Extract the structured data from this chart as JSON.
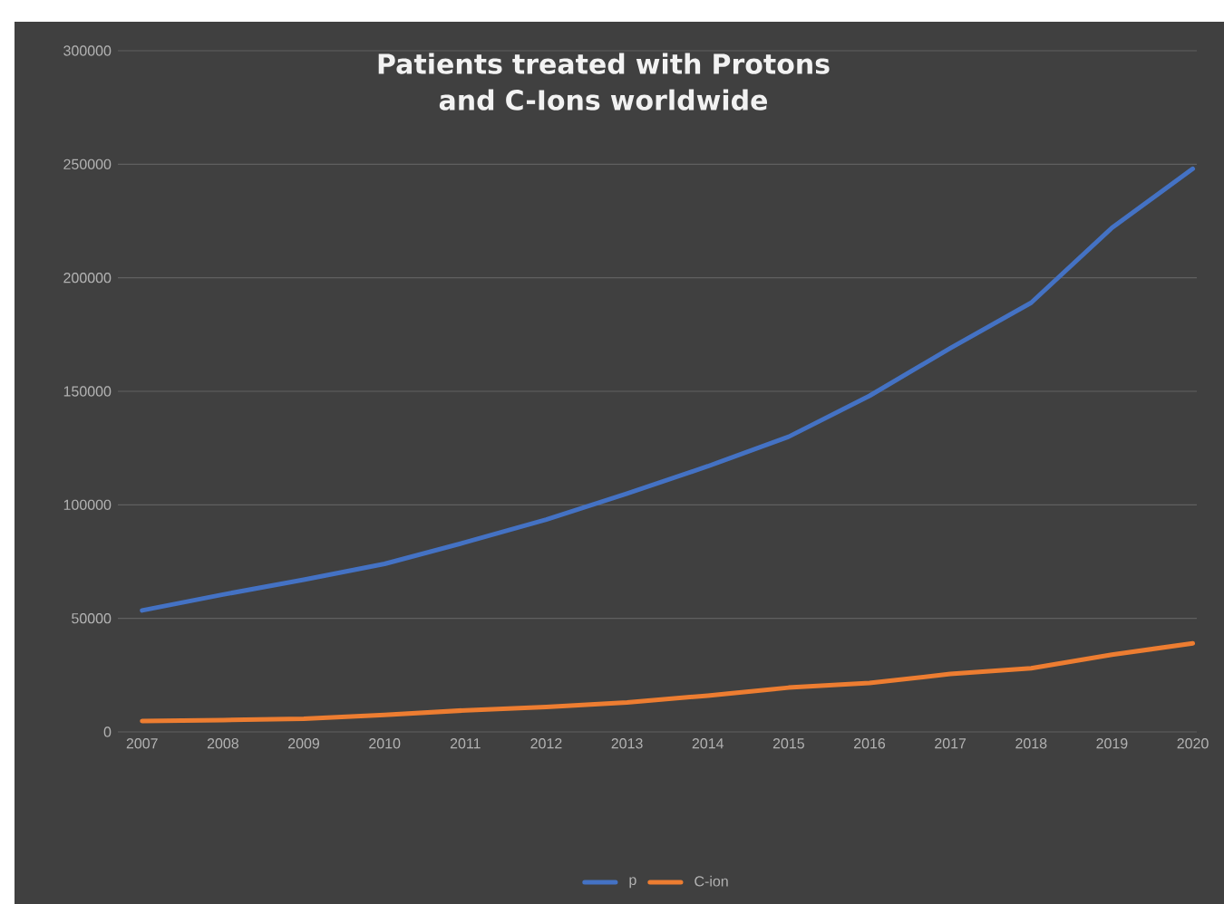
{
  "chart_data": {
    "type": "line",
    "title": "Patients treated with Protons and C-Ions worldwide",
    "categories": [
      "2007",
      "2008",
      "2009",
      "2010",
      "2011",
      "2012",
      "2013",
      "2014",
      "2015",
      "2016",
      "2017",
      "2018",
      "2019",
      "2020"
    ],
    "series": [
      {
        "name": "p",
        "color": "#4472c4",
        "values": [
          53500,
          60500,
          67000,
          74000,
          83500,
          93500,
          105000,
          117000,
          130000,
          148000,
          169000,
          189000,
          222000,
          248000
        ]
      },
      {
        "name": "C-ion",
        "color": "#ed7d31",
        "values": [
          4800,
          5200,
          5800,
          7500,
          9500,
          11000,
          13000,
          16000,
          19500,
          21500,
          25500,
          28000,
          34000,
          39000
        ]
      }
    ],
    "ylim": [
      0,
      300000
    ],
    "yticks": [
      0,
      50000,
      100000,
      150000,
      200000,
      250000,
      300000
    ],
    "grid": "y",
    "legend": "bottom",
    "marker": "none",
    "line_style": "solid"
  }
}
